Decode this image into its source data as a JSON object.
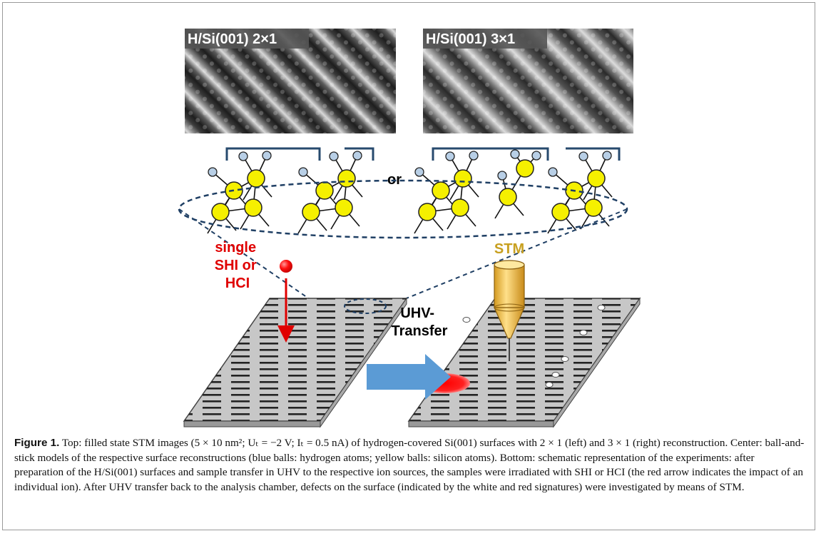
{
  "figure": {
    "stm_images": [
      {
        "label": "H/Si(001) 2×1"
      },
      {
        "label": "H/Si(001) 3×1"
      }
    ],
    "or_label": "or",
    "ion_label_lines": [
      "single",
      "SHI or",
      "HCI"
    ],
    "transfer_label_lines": [
      "UHV-",
      "Transfer"
    ],
    "stm_label": "STM",
    "colors": {
      "hydrogen": "#b8cfe6",
      "silicon": "#f5f000",
      "bracket": "#274a6e",
      "ion_text": "#e00000",
      "stm_text": "#c8a020",
      "arrow": "#5b9bd5",
      "tip": "#f2c34a"
    }
  },
  "caption": {
    "label": "Figure 1.",
    "text": "Top: filled state STM images (5 × 10 nm²; Uₜ = −2 V; Iₜ = 0.5 nA) of hydrogen-covered Si(001) surfaces with 2 × 1 (left) and 3 × 1 (right) reconstruction. Center: ball-and-stick models of the respective surface reconstructions (blue balls: hydrogen atoms; yellow balls: silicon atoms). Bottom: schematic representation of the experiments: after preparation of the H/Si(001) surfaces and sample transfer in UHV to the respective ion sources, the samples were irradiated with SHI or HCI (the red arrow indicates the impact of an individual ion). After UHV transfer back to the analysis chamber, defects on the surface (indicated by the white and red signatures) were investigated by means of STM."
  }
}
